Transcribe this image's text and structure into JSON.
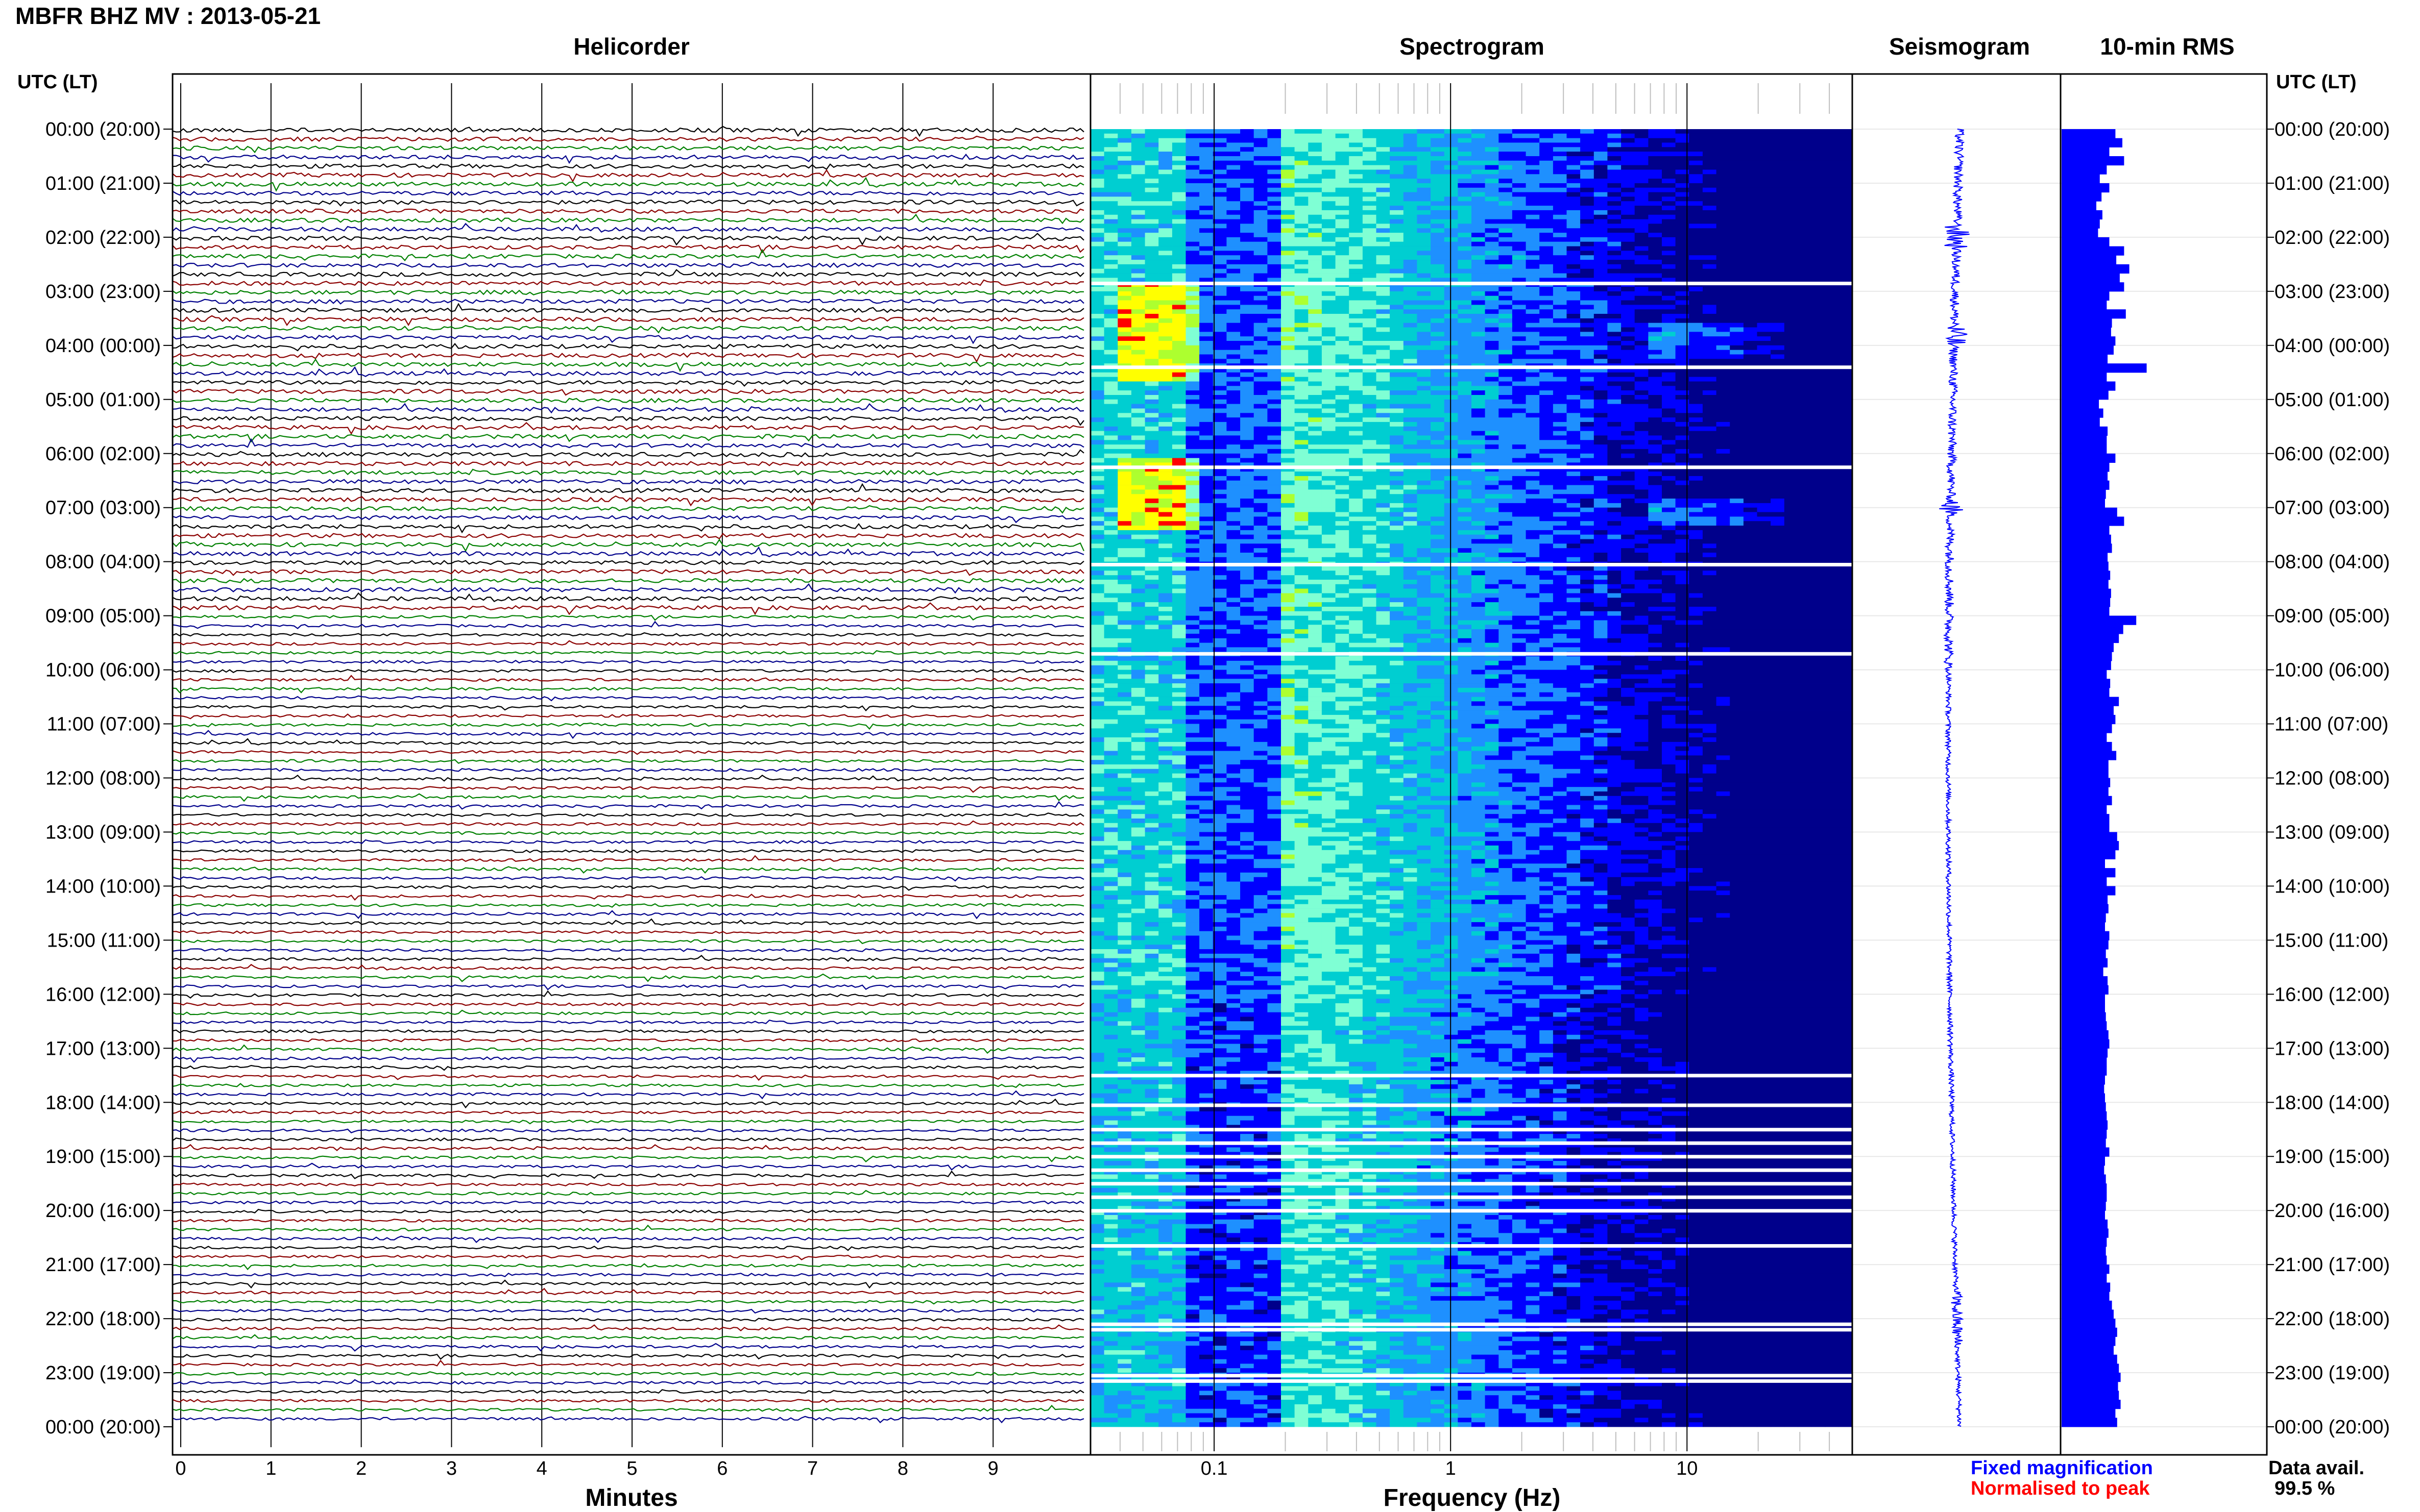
{
  "header": {
    "title": "MBFR BHZ MV : 2013-05-21",
    "utc_left": "UTC (LT)",
    "utc_right": "UTC (LT)"
  },
  "panels": {
    "helicorder": "Helicorder",
    "spectrogram": "Spectrogram",
    "seismogram": "Seismogram",
    "rms": "10-min RMS"
  },
  "time_labels": [
    "00:00 (20:00)",
    "01:00 (21:00)",
    "02:00 (22:00)",
    "03:00 (23:00)",
    "04:00 (00:00)",
    "05:00 (01:00)",
    "06:00 (02:00)",
    "07:00 (03:00)",
    "08:00 (04:00)",
    "09:00 (05:00)",
    "10:00 (06:00)",
    "11:00 (07:00)",
    "12:00 (08:00)",
    "13:00 (09:00)",
    "14:00 (10:00)",
    "15:00 (11:00)",
    "16:00 (12:00)",
    "17:00 (13:00)",
    "18:00 (14:00)",
    "19:00 (15:00)",
    "20:00 (16:00)",
    "21:00 (17:00)",
    "22:00 (18:00)",
    "23:00 (19:00)",
    "00:00 (20:00)"
  ],
  "legend": {
    "fixed": "Fixed magnification",
    "normalised": "Normalised to peak",
    "fixed_color": "#0000ff",
    "normalised_color": "#ff0000"
  },
  "availability": {
    "label": "Data avail.",
    "value": "99.5 %"
  },
  "chart_data": [
    {
      "type": "line",
      "name": "helicorder",
      "xlabel": "Minutes",
      "x_ticks": [
        "0",
        "1",
        "2",
        "3",
        "4",
        "5",
        "6",
        "7",
        "8",
        "9"
      ],
      "xlim": [
        0,
        10
      ],
      "rows_per_hour": 6,
      "trace_colors": [
        "#000000",
        "#8b0000",
        "#008000",
        "#00008b"
      ]
    },
    {
      "type": "heatmap",
      "name": "spectrogram",
      "xlabel": "Frequency (Hz)",
      "x_ticks": [
        "0.1",
        "1",
        "10"
      ],
      "xscale": "log",
      "xlim": [
        0.03,
        50
      ],
      "colormap": [
        "#00008b",
        "#0000ff",
        "#1e90ff",
        "#00ced1",
        "#7fffd4",
        "#adff2f",
        "#ffff00",
        "#ff0000"
      ],
      "gaps_utc_hours": [
        2.85,
        4.4,
        6.25,
        8.05,
        9.7,
        17.5,
        18.05,
        18.5,
        18.75,
        19.0,
        19.25,
        19.5,
        19.75,
        20.0,
        20.65,
        22.1,
        22.2,
        23.05,
        23.15
      ]
    },
    {
      "type": "line",
      "name": "seismogram",
      "y_time_hours": [
        0,
        24
      ]
    },
    {
      "type": "bar",
      "name": "10-min RMS",
      "orientation": "horizontal",
      "bar_color": "#0000ff",
      "values": [
        0.62,
        0.7,
        0.55,
        0.72,
        0.52,
        0.44,
        0.55,
        0.46,
        0.4,
        0.47,
        0.44,
        0.42,
        0.55,
        0.72,
        0.63,
        0.78,
        0.67,
        0.72,
        0.55,
        0.52,
        0.74,
        0.58,
        0.57,
        0.62,
        0.6,
        0.53,
        0.98,
        0.52,
        0.62,
        0.54,
        0.43,
        0.48,
        0.44,
        0.53,
        0.52,
        0.52,
        0.62,
        0.55,
        0.53,
        0.55,
        0.51,
        0.5,
        0.64,
        0.72,
        0.55,
        0.57,
        0.58,
        0.53,
        0.54,
        0.56,
        0.54,
        0.57,
        0.56,
        0.55,
        0.86,
        0.71,
        0.66,
        0.6,
        0.58,
        0.57,
        0.52,
        0.56,
        0.55,
        0.66,
        0.6,
        0.62,
        0.58,
        0.52,
        0.58,
        0.63,
        0.54,
        0.54,
        0.56,
        0.54,
        0.58,
        0.52,
        0.55,
        0.55,
        0.64,
        0.66,
        0.62,
        0.5,
        0.62,
        0.52,
        0.62,
        0.53,
        0.54,
        0.51,
        0.5,
        0.55,
        0.54,
        0.51,
        0.53,
        0.48,
        0.53,
        0.54,
        0.5,
        0.5,
        0.51,
        0.52,
        0.54,
        0.55,
        0.53,
        0.52,
        0.52,
        0.5,
        0.49,
        0.5,
        0.51,
        0.52,
        0.53,
        0.52,
        0.51,
        0.55,
        0.5,
        0.49,
        0.51,
        0.52,
        0.52,
        0.51,
        0.5,
        0.53,
        0.54,
        0.52,
        0.51,
        0.52,
        0.55,
        0.52,
        0.56,
        0.55,
        0.58,
        0.6,
        0.62,
        0.64,
        0.62,
        0.6,
        0.64,
        0.66,
        0.68,
        0.65,
        0.66,
        0.68,
        0.62,
        0.64
      ]
    }
  ]
}
